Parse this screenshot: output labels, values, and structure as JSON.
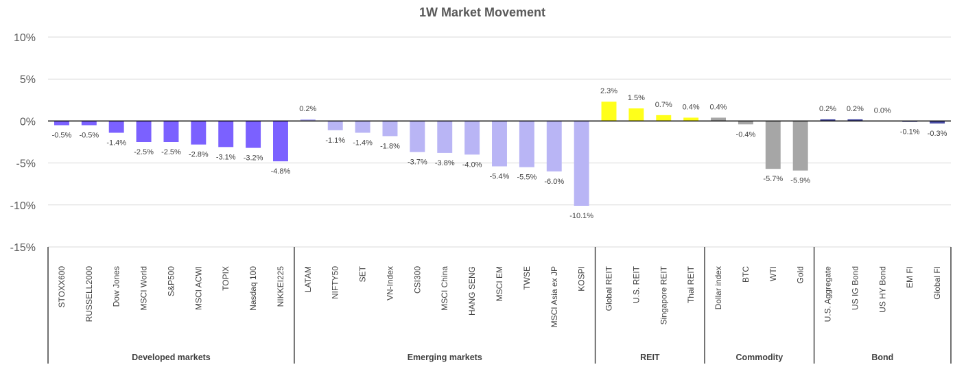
{
  "chart_data": {
    "type": "bar",
    "title": "1W Market Movement",
    "ylim": [
      -15,
      10
    ],
    "yticks": [
      10,
      5,
      0,
      -5,
      -10,
      -15
    ],
    "ytick_labels": [
      "10%",
      "5%",
      "0%",
      "-5%",
      "-10%",
      "-15%"
    ],
    "grid": true,
    "legend": "none",
    "groups": [
      {
        "name": "Developed  markets",
        "color": "#7B61FF",
        "categories": [
          "STOXX600",
          "RUSSELL2000",
          "Dow Jones",
          "MSCI World",
          "S&P500",
          "MSCI ACWI",
          "TOPIX",
          "Nasdaq 100",
          "NIKKEI225"
        ],
        "values": [
          -0.5,
          -0.5,
          -1.4,
          -2.5,
          -2.5,
          -2.8,
          -3.1,
          -3.2,
          -4.8
        ],
        "labels": [
          "-0.5%",
          "-0.5%",
          "-1.4%",
          "-2.5%",
          "-2.5%",
          "-2.8%",
          "-3.1%",
          "-3.2%",
          "-4.8%"
        ]
      },
      {
        "name": "Emerging markets",
        "color": "#B9B5F5",
        "categories": [
          "LATAM",
          "NIFTY50",
          "SET",
          "VN-Index",
          "CSI300",
          "MSCI China",
          "HANG SENG",
          "MSCI EM",
          "TWSE",
          "MSCI Asia ex JP",
          "KOSPI"
        ],
        "values": [
          0.2,
          -1.1,
          -1.4,
          -1.8,
          -3.7,
          -3.8,
          -4.0,
          -5.4,
          -5.5,
          -6.0,
          -10.1
        ],
        "labels": [
          "0.2%",
          "-1.1%",
          "-1.4%",
          "-1.8%",
          "-3.7%",
          "-3.8%",
          "-4.0%",
          "-5.4%",
          "-5.5%",
          "-6.0%",
          "-10.1%"
        ]
      },
      {
        "name": "REIT",
        "color": "#FFFF1A",
        "categories": [
          "Global REIT",
          "U.S. REIT",
          "Singapore REIT",
          "Thai REIT"
        ],
        "values": [
          2.3,
          1.5,
          0.7,
          0.4
        ],
        "labels": [
          "2.3%",
          "1.5%",
          "0.7%",
          "0.4%"
        ]
      },
      {
        "name": "Commodity",
        "color": "#A6A6A6",
        "categories": [
          "Dollar index",
          "BTC",
          "WTI",
          "Gold"
        ],
        "values": [
          0.4,
          -0.4,
          -5.7,
          -5.9
        ],
        "labels": [
          "0.4%",
          "-0.4%",
          "-5.7%",
          "-5.9%"
        ]
      },
      {
        "name": "Bond",
        "color": "#4A4EA6",
        "categories": [
          "U.S. Aggregate",
          "US IG Bond",
          "US HY Bond",
          "EM FI",
          "Global FI"
        ],
        "values": [
          0.2,
          0.2,
          0.0,
          -0.1,
          -0.3
        ],
        "labels": [
          "0.2%",
          "0.2%",
          "0.0%",
          "-0.1%",
          "-0.3%"
        ]
      }
    ]
  }
}
